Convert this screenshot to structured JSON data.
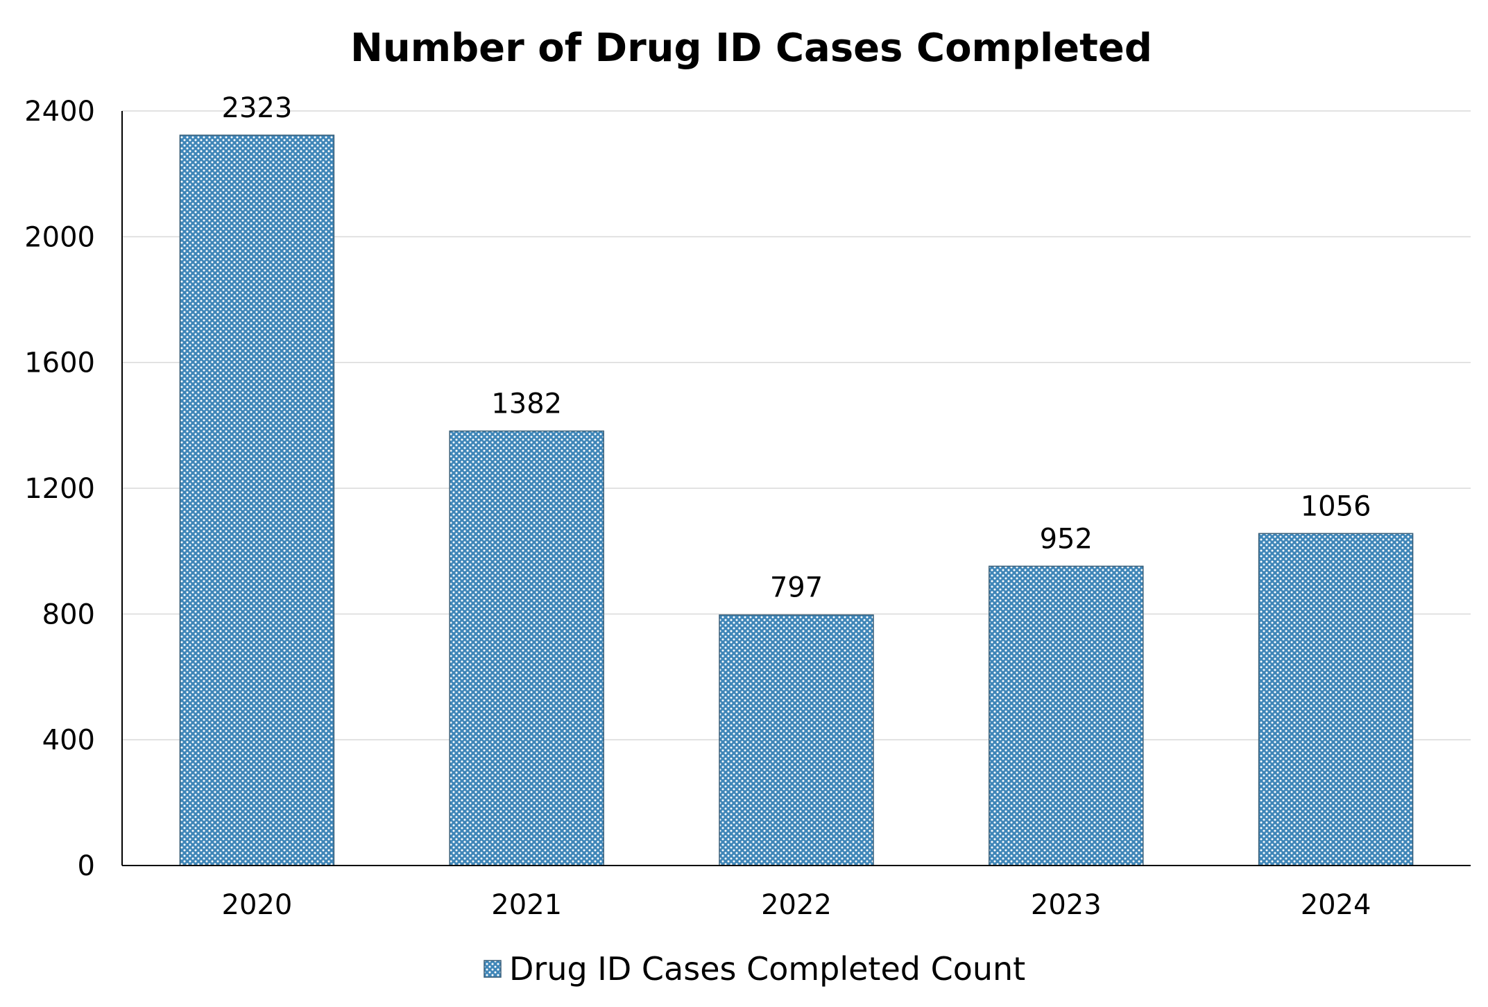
{
  "chart_data": {
    "type": "bar",
    "title": "Number of Drug ID Cases Completed",
    "xlabel": "",
    "ylabel": "",
    "categories": [
      "2020",
      "2021",
      "2022",
      "2023",
      "2024"
    ],
    "series": [
      {
        "name": "Drug ID Cases Completed Count",
        "values": [
          2323,
          1382,
          797,
          952,
          1056
        ]
      }
    ],
    "data_labels": [
      "2323",
      "1382",
      "797",
      "952",
      "1056"
    ],
    "ylim": [
      0,
      2400
    ],
    "yticks": [
      0,
      400,
      800,
      1200,
      1600,
      2000,
      2400
    ],
    "ytick_labels": [
      "0",
      "400",
      "800",
      "1200",
      "1600",
      "2000",
      "2400"
    ],
    "grid": true,
    "legend_position": "bottom",
    "colors": {
      "bar_fill": "#3f86b8",
      "bar_dots": "#ffffff",
      "bar_border": "#3a5f78",
      "gridline": "#d9d9d9",
      "axis": "#000000"
    }
  }
}
